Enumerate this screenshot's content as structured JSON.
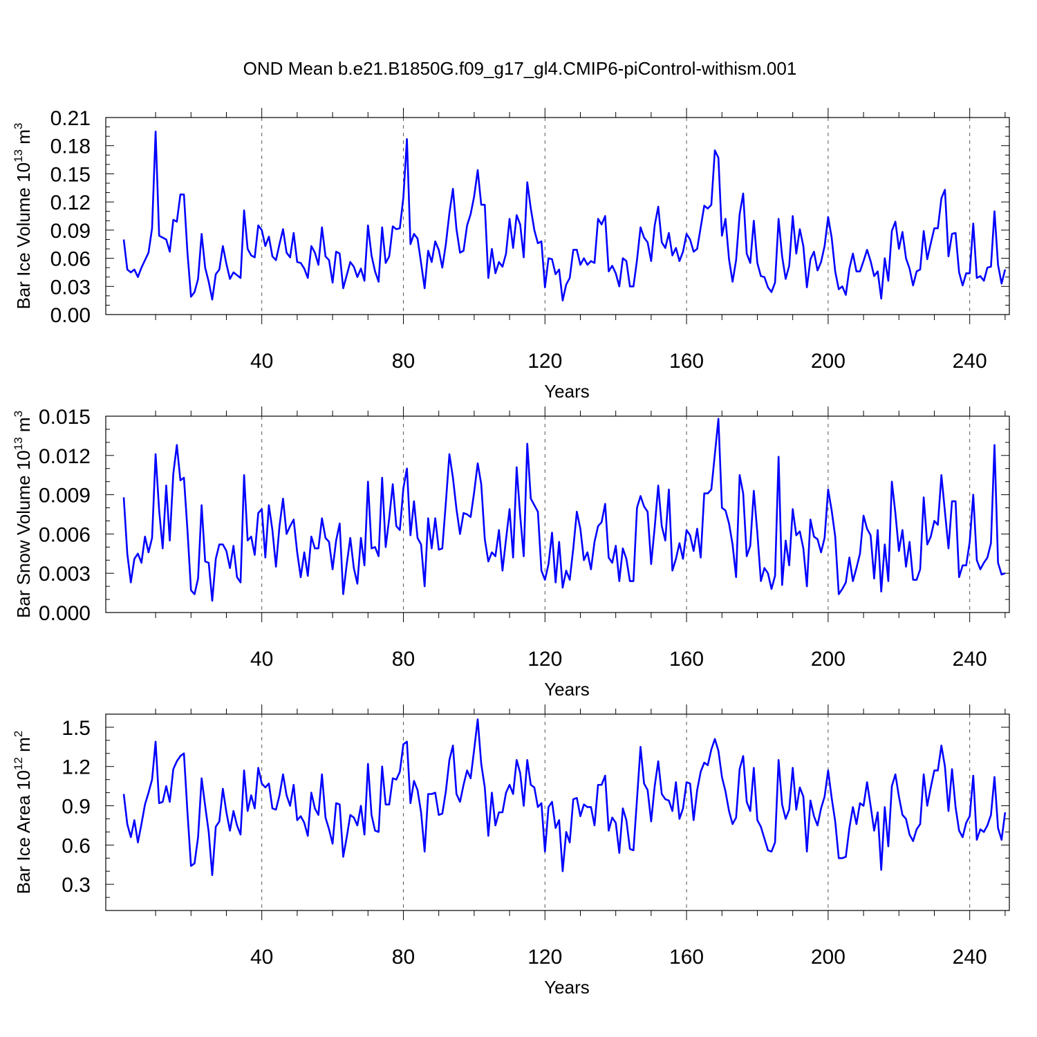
{
  "title": "OND Mean b.e21.B1850G.f09_g17_gl4.CMIP6-piControl-withism.001",
  "series_color": "#0000ff",
  "chart_data": [
    {
      "type": "line",
      "name": "panel-ice-volume",
      "title": "",
      "xlabel": "Years",
      "ylabel_main": "Bar Ice Volume 10",
      "ylabel_exp": "13",
      "ylabel_unit": " m",
      "ylabel_unit_exp": "3",
      "xlim": [
        1,
        251
      ],
      "ylim": [
        0,
        0.21
      ],
      "xticks": [
        40,
        80,
        120,
        160,
        200,
        240
      ],
      "xtick_labels": [
        "40",
        "80",
        "120",
        "160",
        "200",
        "240"
      ],
      "yticks": [
        0,
        0.03,
        0.06,
        0.09,
        0.12,
        0.15,
        0.18,
        0.21
      ],
      "ytick_labels": [
        "0.00",
        "0.03",
        "0.06",
        "0.09",
        "0.12",
        "0.15",
        "0.18",
        "0.21"
      ],
      "grid": "vertical dashed at major x ticks",
      "x_start": 1,
      "values": [
        0.08,
        0.048,
        0.045,
        0.048,
        0.04,
        0.05,
        0.058,
        0.066,
        0.092,
        0.195,
        0.084,
        0.082,
        0.08,
        0.067,
        0.101,
        0.099,
        0.128,
        0.128,
        0.066,
        0.019,
        0.024,
        0.038,
        0.086,
        0.05,
        0.035,
        0.016,
        0.043,
        0.048,
        0.073,
        0.054,
        0.038,
        0.045,
        0.042,
        0.039,
        0.111,
        0.07,
        0.063,
        0.061,
        0.095,
        0.09,
        0.073,
        0.083,
        0.062,
        0.058,
        0.075,
        0.091,
        0.066,
        0.061,
        0.087,
        0.056,
        0.055,
        0.049,
        0.039,
        0.073,
        0.066,
        0.053,
        0.093,
        0.062,
        0.058,
        0.034,
        0.067,
        0.065,
        0.028,
        0.042,
        0.056,
        0.051,
        0.04,
        0.049,
        0.036,
        0.095,
        0.063,
        0.046,
        0.035,
        0.093,
        0.055,
        0.062,
        0.094,
        0.091,
        0.092,
        0.125,
        0.187,
        0.075,
        0.086,
        0.081,
        0.055,
        0.028,
        0.068,
        0.056,
        0.078,
        0.069,
        0.05,
        0.075,
        0.108,
        0.134,
        0.091,
        0.066,
        0.068,
        0.095,
        0.107,
        0.126,
        0.154,
        0.117,
        0.117,
        0.039,
        0.07,
        0.044,
        0.056,
        0.051,
        0.065,
        0.102,
        0.071,
        0.106,
        0.096,
        0.061,
        0.141,
        0.113,
        0.09,
        0.076,
        0.078,
        0.029,
        0.06,
        0.059,
        0.043,
        0.048,
        0.015,
        0.032,
        0.039,
        0.069,
        0.069,
        0.053,
        0.06,
        0.053,
        0.057,
        0.055,
        0.102,
        0.096,
        0.105,
        0.046,
        0.052,
        0.044,
        0.03,
        0.06,
        0.057,
        0.03,
        0.03,
        0.058,
        0.093,
        0.082,
        0.077,
        0.057,
        0.095,
        0.115,
        0.077,
        0.071,
        0.087,
        0.063,
        0.071,
        0.057,
        0.067,
        0.086,
        0.08,
        0.067,
        0.07,
        0.093,
        0.116,
        0.113,
        0.117,
        0.175,
        0.167,
        0.084,
        0.102,
        0.059,
        0.035,
        0.058,
        0.107,
        0.129,
        0.065,
        0.055,
        0.1,
        0.055,
        0.041,
        0.04,
        0.029,
        0.024,
        0.034,
        0.102,
        0.062,
        0.038,
        0.052,
        0.105,
        0.065,
        0.091,
        0.073,
        0.029,
        0.059,
        0.067,
        0.047,
        0.056,
        0.073,
        0.104,
        0.082,
        0.046,
        0.027,
        0.03,
        0.021,
        0.049,
        0.065,
        0.046,
        0.046,
        0.057,
        0.069,
        0.057,
        0.041,
        0.046,
        0.017,
        0.06,
        0.036,
        0.089,
        0.099,
        0.07,
        0.088,
        0.06,
        0.049,
        0.031,
        0.046,
        0.048,
        0.089,
        0.059,
        0.076,
        0.092,
        0.092,
        0.124,
        0.133,
        0.062,
        0.086,
        0.087,
        0.045,
        0.031,
        0.044,
        0.044,
        0.097,
        0.039,
        0.041,
        0.036,
        0.05,
        0.051,
        0.11,
        0.053,
        0.033,
        0.048
      ]
    },
    {
      "type": "line",
      "name": "panel-snow-volume",
      "title": "",
      "xlabel": "Years",
      "ylabel_main": "Bar Snow Volume 10",
      "ylabel_exp": "13",
      "ylabel_unit": " m",
      "ylabel_unit_exp": "3",
      "xlim": [
        1,
        251
      ],
      "ylim": [
        0,
        0.015
      ],
      "xticks": [
        40,
        80,
        120,
        160,
        200,
        240
      ],
      "xtick_labels": [
        "40",
        "80",
        "120",
        "160",
        "200",
        "240"
      ],
      "yticks": [
        0,
        0.003,
        0.006,
        0.009,
        0.012,
        0.015
      ],
      "ytick_labels": [
        "0.000",
        "0.003",
        "0.006",
        "0.009",
        "0.012",
        "0.015"
      ],
      "grid": "vertical dashed at major x ticks",
      "x_start": 1,
      "values": [
        0.0088,
        0.0045,
        0.0023,
        0.0041,
        0.0045,
        0.0038,
        0.0058,
        0.0046,
        0.0057,
        0.0121,
        0.0078,
        0.0049,
        0.0097,
        0.0055,
        0.0106,
        0.0128,
        0.0101,
        0.0103,
        0.0063,
        0.0017,
        0.0014,
        0.0026,
        0.0082,
        0.0039,
        0.0038,
        0.0009,
        0.0041,
        0.0052,
        0.0052,
        0.0047,
        0.0034,
        0.0051,
        0.0027,
        0.0023,
        0.0105,
        0.0055,
        0.0058,
        0.0044,
        0.0076,
        0.0079,
        0.0042,
        0.0082,
        0.0063,
        0.0035,
        0.0066,
        0.0087,
        0.006,
        0.0066,
        0.0071,
        0.0046,
        0.0027,
        0.0046,
        0.0028,
        0.0058,
        0.0049,
        0.0049,
        0.0072,
        0.0057,
        0.0054,
        0.0033,
        0.0055,
        0.0068,
        0.0014,
        0.0037,
        0.0057,
        0.0034,
        0.0022,
        0.0057,
        0.0036,
        0.01,
        0.0049,
        0.005,
        0.0043,
        0.0103,
        0.005,
        0.0072,
        0.0098,
        0.0066,
        0.0063,
        0.0095,
        0.011,
        0.0059,
        0.0085,
        0.0057,
        0.0052,
        0.002,
        0.0072,
        0.0049,
        0.0072,
        0.0048,
        0.0049,
        0.0084,
        0.0121,
        0.0103,
        0.0079,
        0.006,
        0.0076,
        0.0075,
        0.0073,
        0.0092,
        0.0114,
        0.0098,
        0.0056,
        0.0039,
        0.0046,
        0.0043,
        0.0063,
        0.0032,
        0.0056,
        0.0079,
        0.0042,
        0.0111,
        0.0074,
        0.0043,
        0.0129,
        0.0087,
        0.0082,
        0.0077,
        0.0032,
        0.0025,
        0.0037,
        0.0061,
        0.0023,
        0.0054,
        0.0019,
        0.0032,
        0.0025,
        0.0049,
        0.0077,
        0.0064,
        0.004,
        0.0046,
        0.0033,
        0.0054,
        0.0066,
        0.0069,
        0.0083,
        0.0042,
        0.0038,
        0.0051,
        0.0024,
        0.0049,
        0.0041,
        0.0024,
        0.0024,
        0.008,
        0.0089,
        0.0081,
        0.0077,
        0.0037,
        0.0065,
        0.0097,
        0.0066,
        0.0055,
        0.0094,
        0.0032,
        0.0041,
        0.0053,
        0.0041,
        0.0063,
        0.0059,
        0.0047,
        0.0064,
        0.0042,
        0.0091,
        0.0091,
        0.0094,
        0.0121,
        0.0148,
        0.008,
        0.0078,
        0.0068,
        0.0052,
        0.0027,
        0.0105,
        0.0091,
        0.0043,
        0.0051,
        0.0093,
        0.0061,
        0.0024,
        0.0034,
        0.003,
        0.0018,
        0.0028,
        0.0119,
        0.0021,
        0.0055,
        0.0036,
        0.0079,
        0.0059,
        0.0062,
        0.0049,
        0.002,
        0.0071,
        0.0058,
        0.0056,
        0.0046,
        0.0057,
        0.0094,
        0.0078,
        0.0058,
        0.0014,
        0.0018,
        0.0023,
        0.0042,
        0.0024,
        0.0034,
        0.0045,
        0.0074,
        0.0064,
        0.0059,
        0.0026,
        0.0063,
        0.0016,
        0.0052,
        0.0024,
        0.01,
        0.0076,
        0.0047,
        0.0063,
        0.0035,
        0.0054,
        0.0025,
        0.0025,
        0.0033,
        0.0088,
        0.0052,
        0.0058,
        0.007,
        0.0067,
        0.0105,
        0.0077,
        0.0049,
        0.0085,
        0.0085,
        0.0027,
        0.0036,
        0.0036,
        0.0054,
        0.009,
        0.004,
        0.0033,
        0.0038,
        0.0042,
        0.0053,
        0.0128,
        0.0038,
        0.0029,
        0.003
      ]
    },
    {
      "type": "line",
      "name": "panel-ice-area",
      "title": "",
      "xlabel": "Years",
      "ylabel_main": "Bar Ice Area 10",
      "ylabel_exp": "12",
      "ylabel_unit": " m",
      "ylabel_unit_exp": "2",
      "xlim": [
        1,
        251
      ],
      "ylim": [
        0.1,
        1.6
      ],
      "xticks": [
        40,
        80,
        120,
        160,
        200,
        240
      ],
      "xtick_labels": [
        "40",
        "80",
        "120",
        "160",
        "200",
        "240"
      ],
      "yticks": [
        0.3,
        0.6,
        0.9,
        1.2,
        1.5
      ],
      "ytick_labels": [
        "0.3",
        "0.6",
        "0.9",
        "1.2",
        "1.5"
      ],
      "grid": "vertical dashed at major x ticks",
      "x_start": 1,
      "values": [
        0.99,
        0.76,
        0.66,
        0.79,
        0.62,
        0.76,
        0.91,
        1.0,
        1.1,
        1.39,
        0.92,
        0.93,
        1.05,
        0.93,
        1.18,
        1.24,
        1.28,
        1.3,
        0.85,
        0.44,
        0.46,
        0.66,
        1.11,
        0.9,
        0.7,
        0.37,
        0.74,
        0.78,
        1.03,
        0.85,
        0.71,
        0.86,
        0.75,
        0.68,
        1.17,
        0.86,
        0.98,
        0.88,
        1.19,
        1.07,
        1.04,
        1.07,
        0.88,
        0.87,
        0.98,
        1.14,
        0.98,
        0.9,
        1.06,
        0.79,
        0.82,
        0.77,
        0.67,
        1.0,
        0.88,
        0.83,
        1.14,
        0.81,
        0.72,
        0.61,
        0.92,
        0.91,
        0.51,
        0.66,
        0.83,
        0.81,
        0.75,
        0.9,
        0.68,
        1.22,
        0.83,
        0.71,
        0.7,
        1.2,
        0.91,
        0.91,
        1.11,
        1.1,
        1.16,
        1.37,
        1.39,
        0.92,
        1.09,
        1.02,
        0.85,
        0.55,
        0.99,
        0.99,
        1.0,
        0.83,
        0.84,
        1.01,
        1.25,
        1.36,
        0.99,
        0.93,
        1.06,
        1.17,
        1.11,
        1.33,
        1.56,
        1.22,
        1.04,
        0.67,
        1.0,
        0.75,
        0.85,
        0.85,
        1.0,
        1.06,
        0.99,
        1.25,
        1.15,
        0.9,
        1.25,
        1.06,
        1.04,
        0.89,
        0.92,
        0.55,
        0.89,
        0.93,
        0.73,
        0.79,
        0.4,
        0.7,
        0.62,
        0.95,
        0.96,
        0.82,
        0.91,
        0.89,
        0.89,
        0.75,
        1.06,
        1.06,
        1.13,
        0.71,
        0.81,
        0.77,
        0.54,
        0.88,
        0.79,
        0.57,
        0.56,
        0.95,
        1.35,
        1.07,
        1.02,
        0.78,
        1.05,
        1.24,
        0.99,
        0.95,
        0.94,
        0.86,
        1.08,
        0.8,
        0.88,
        1.08,
        1.07,
        0.79,
        1.02,
        1.16,
        1.23,
        1.21,
        1.33,
        1.41,
        1.32,
        1.12,
        1.01,
        0.86,
        0.76,
        0.81,
        1.18,
        1.28,
        0.93,
        0.86,
        1.19,
        0.79,
        0.74,
        0.65,
        0.56,
        0.55,
        0.62,
        1.25,
        0.91,
        0.8,
        0.87,
        1.19,
        0.87,
        1.04,
        0.97,
        0.55,
        0.94,
        0.82,
        0.75,
        0.88,
        0.97,
        1.17,
        0.96,
        0.78,
        0.5,
        0.5,
        0.51,
        0.73,
        0.89,
        0.76,
        0.92,
        0.9,
        1.08,
        0.9,
        0.71,
        0.85,
        0.41,
        0.89,
        0.59,
        1.05,
        1.14,
        0.97,
        0.83,
        0.8,
        0.68,
        0.63,
        0.72,
        0.76,
        1.14,
        0.9,
        1.04,
        1.17,
        1.17,
        1.36,
        1.2,
        0.86,
        1.18,
        0.89,
        0.71,
        0.66,
        0.77,
        0.82,
        1.13,
        0.64,
        0.72,
        0.7,
        0.75,
        0.83,
        1.12,
        0.73,
        0.64,
        0.85
      ]
    }
  ]
}
